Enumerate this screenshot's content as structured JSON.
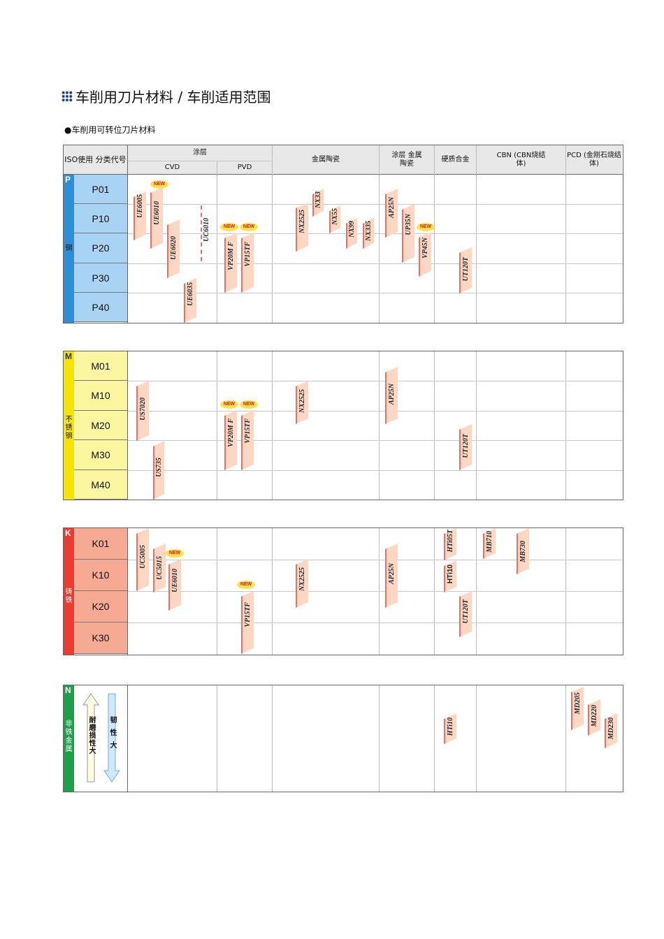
{
  "title": "车削用刀片材料 / 车削适用范围",
  "subtitle": "●车削用可转位刀片材料",
  "header": {
    "iso": "ISO使用 分类代号",
    "coated": "涂层",
    "cvd": "CVD",
    "pvd": "PVD",
    "cermet": "金属陶瓷",
    "coated_cermet": "涂层 金属陶瓷",
    "carbide": "硬质合金",
    "cbn": "CBN (CBN烧结体)",
    "pcd": "PCD (金刚石烧结体)"
  },
  "new_label": "NEW",
  "sections": [
    {
      "letter": "P",
      "name": "钢",
      "color": "#2f8fd6",
      "grade_bg": "#a9d3f3",
      "grades": [
        "P01",
        "P10",
        "P20",
        "P30",
        "P40"
      ],
      "bars": [
        "UE6005",
        "UE6010",
        "UE6020",
        "UE6035",
        "UC6010",
        "VP20M F",
        "VP15TF",
        "NX2525",
        "NX33",
        "NX55",
        "NX99",
        "NX335",
        "AP25N",
        "UP35N",
        "VP45N",
        "UT120T"
      ]
    },
    {
      "letter": "M",
      "name": "不锈钢",
      "color": "#f5e400",
      "grade_bg": "#fbf6a0",
      "grades": [
        "M01",
        "M10",
        "M20",
        "M30",
        "M40"
      ],
      "bars": [
        "US7020",
        "US735",
        "VP20M F",
        "VP15TF",
        "NX2525",
        "AP25N",
        "UT120T"
      ]
    },
    {
      "letter": "K",
      "name": "铸铁",
      "color": "#ee3b2f",
      "grade_bg": "#f6a993",
      "grades": [
        "K01",
        "K10",
        "K20",
        "K30"
      ],
      "bars": [
        "UC5005",
        "UC5015",
        "UE6010",
        "VP15TF",
        "NX2525",
        "AP25N",
        "HTi05T",
        "HTi10",
        "UT120T",
        "MB710",
        "MB730"
      ]
    },
    {
      "letter": "N",
      "name": "非铁金属",
      "color": "#1ea04a",
      "bars": [
        "HTi10",
        "MD205",
        "MD220",
        "MD230"
      ],
      "legend_up": "耐磨损性大",
      "legend_down": "韧性大"
    }
  ],
  "colors": {
    "bar_edge": "#ef7060",
    "bar_fill": "#fbd7c4",
    "new_badge": "#ffe14d"
  }
}
